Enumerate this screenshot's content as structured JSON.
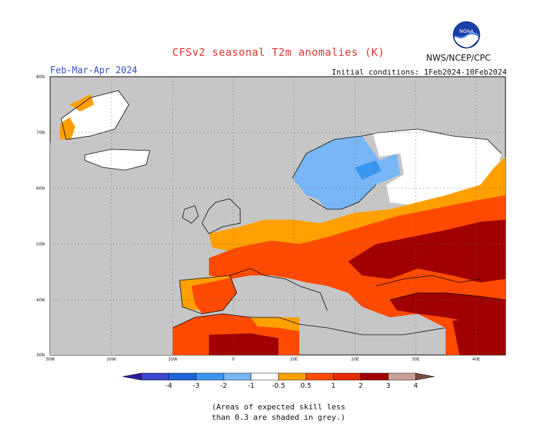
{
  "title": "CFSv2 seasonal T2m anomalies (K)",
  "period": "Feb-Mar-Apr 2024",
  "initial_conditions": "Initial conditions: 1Feb2024-10Feb2024",
  "agency": "NWS/NCEP/CPC",
  "logo_text": "NOAA",
  "latitude_labels": [
    "80N",
    "70N",
    "60N",
    "50N",
    "40N",
    "30N"
  ],
  "longitude_labels": [
    "30W",
    "20W",
    "10W",
    "0",
    "10E",
    "20E",
    "30E",
    "40E"
  ],
  "colorbar": {
    "labels": [
      "-4",
      "-3",
      "-2",
      "-1",
      "-0.5",
      "0.5",
      "1",
      "2",
      "3",
      "4"
    ],
    "colors": [
      "#2a1a9e",
      "#3a48cc",
      "#1e64d8",
      "#3a96f0",
      "#78b6f6",
      "#ffffff",
      "#ffa000",
      "#ff4a00",
      "#e82800",
      "#a00000",
      "#c8a096",
      "#7a4c40"
    ]
  },
  "note_line1": "(Areas of expected skill less",
  "note_line2": "than 0.3 are shaded in grey.)",
  "colors": {
    "land_grey": "#c6c6c6",
    "ocean": "#ffffff",
    "coast": "#000000",
    "anom_cold1": "#78b6f6",
    "anom_cold2": "#3a96f0",
    "anom_warm1": "#ffa000",
    "anom_warm2": "#ff4a00",
    "anom_warm3": "#a00000"
  }
}
